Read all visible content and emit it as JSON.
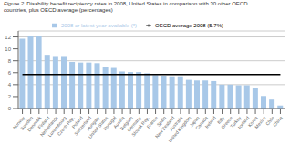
{
  "chart_data": {
    "type": "bar",
    "title": "Figure 2.",
    "subtitle": "Disability benefit recipiency rates in 2008, United States in comparison with 30 other OECD\ncountries, plus OECD average (percentages)",
    "categories": [
      "Norway",
      "Sweden",
      "Denmark",
      "Finland",
      "Netherlands",
      "Luxembourg",
      "Czech Rep.",
      "Poland",
      "Switzerland",
      "Hungary",
      "United States",
      "Portugal",
      "Austria",
      "Belgium",
      "Germany",
      "Slovak Rep.",
      "France",
      "Spain",
      "New Zealand",
      "Australia",
      "United Kingdom",
      "Japan",
      "Canada",
      "Ireland",
      "Italy",
      "Greece",
      "Turkey",
      "Iceland",
      "Korea",
      "Mexico",
      "Chile",
      "China"
    ],
    "series": [
      {
        "name": "2008 or latest year available (*)",
        "type": "bar",
        "color": "#a8c8e8",
        "values": [
          11.7,
          12.2,
          12.2,
          9.0,
          8.8,
          8.8,
          7.8,
          7.7,
          7.7,
          7.6,
          7.0,
          6.8,
          6.2,
          6.1,
          6.1,
          5.9,
          5.6,
          5.5,
          5.4,
          5.4,
          4.8,
          4.7,
          4.7,
          4.6,
          4.0,
          4.0,
          3.9,
          3.9,
          3.5,
          2.1,
          1.5,
          0.5
        ]
      },
      {
        "name": "OECD average 2008 (5.7%)",
        "type": "line",
        "color": "#000000",
        "values": [
          5.7,
          5.7,
          5.7,
          5.7,
          5.7,
          5.7,
          5.7,
          5.7,
          5.7,
          5.7,
          5.7,
          5.7,
          5.7,
          5.7,
          5.7,
          5.7,
          5.7,
          5.7,
          5.7,
          5.7,
          5.7,
          5.7,
          5.7,
          5.7,
          5.7,
          5.7,
          5.7,
          5.7,
          5.7,
          5.7,
          5.7,
          5.7
        ]
      }
    ],
    "ylim": [
      0,
      13
    ],
    "yticks": [
      0,
      2,
      4,
      6,
      8,
      10,
      12
    ],
    "grid": true
  }
}
